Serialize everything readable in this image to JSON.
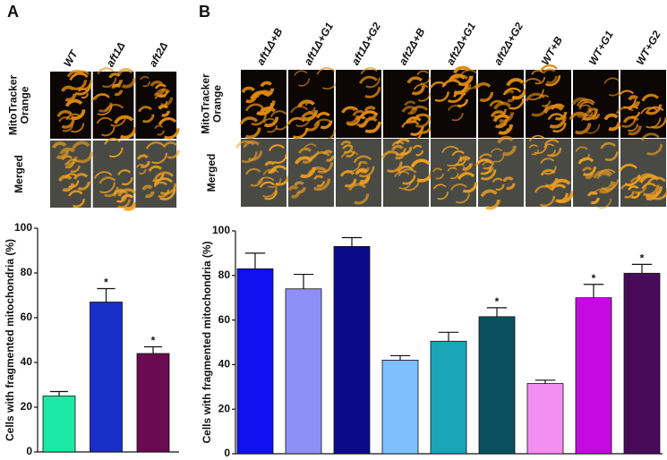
{
  "panel_labels": [
    "A",
    "B"
  ],
  "micrographs": [
    {
      "columns": [
        "WT",
        "aft1Δ",
        "aft2Δ"
      ],
      "rows": [
        [
          "MitoTracker",
          "Orange"
        ],
        [
          "Merged"
        ]
      ]
    },
    {
      "columns": [
        "aft1Δ+B",
        "aft1Δ+G1",
        "aft1Δ+G2",
        "aft2Δ+B",
        "aft2Δ+G1",
        "aft2Δ+G2",
        "WT+B",
        "WT+G1",
        "WT+G2"
      ],
      "rows": [
        [
          "MitoTracker",
          "Orange"
        ],
        [
          "Merged"
        ]
      ]
    }
  ],
  "chart_data": [
    {
      "type": "bar",
      "ylabel": "Cells with fragmented mitochondria (%)",
      "categories": [
        null,
        null,
        null
      ],
      "values": [
        25,
        67,
        44
      ],
      "errors": [
        2,
        6,
        3
      ],
      "colors": [
        "#1de9a6",
        "#1a2ec8",
        "#6b0a50"
      ],
      "significance": [
        null,
        "*",
        "*"
      ],
      "ylim": [
        0,
        100
      ],
      "yticks": [
        0,
        20,
        40,
        60,
        80,
        100
      ]
    },
    {
      "type": "bar",
      "ylabel": "Cells with fragmented mitochondria (%)",
      "categories": [
        null,
        null,
        null,
        null,
        null,
        null,
        null,
        null,
        null
      ],
      "values": [
        83,
        74,
        93,
        42,
        50.5,
        61.5,
        31.5,
        70,
        81
      ],
      "errors": [
        7,
        6.5,
        4,
        2,
        4,
        4,
        1.5,
        6,
        4
      ],
      "colors": [
        "#1010f0",
        "#8f8ff8",
        "#0a0a8a",
        "#7fbfff",
        "#1aa5b8",
        "#0a4f60",
        "#f48ef0",
        "#c40ae0",
        "#4a0a5a"
      ],
      "significance": [
        null,
        null,
        null,
        null,
        null,
        "*",
        null,
        "*",
        "*"
      ],
      "ylim": [
        0,
        100
      ],
      "yticks": [
        0,
        20,
        40,
        60,
        80,
        100
      ]
    }
  ]
}
